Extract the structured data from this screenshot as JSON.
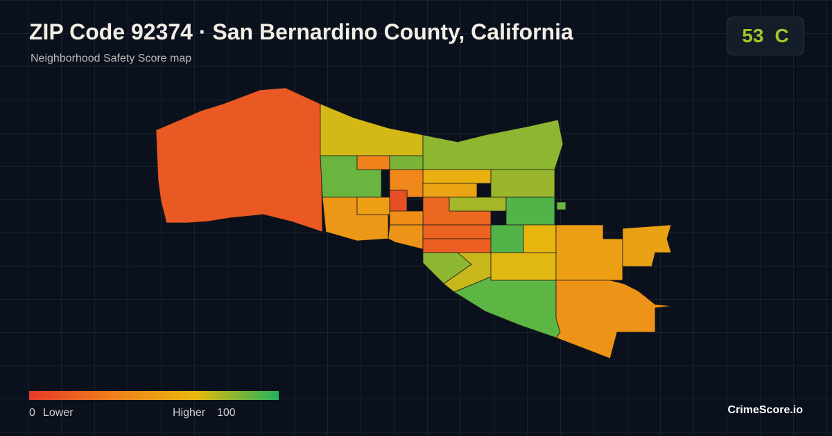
{
  "header": {
    "title": "ZIP Code 92374 · San Bernardino County, California",
    "subtitle": "Neighborhood Safety Score map"
  },
  "badge": {
    "score": 53,
    "grade": "C"
  },
  "map": {
    "scores": [
      15,
      70,
      82,
      88,
      35,
      85,
      62,
      80,
      38,
      55,
      10,
      48,
      52,
      22,
      78,
      92,
      42,
      45,
      20,
      18,
      92,
      65,
      82,
      72,
      68,
      90,
      52,
      53,
      45,
      88
    ]
  },
  "legend": {
    "min": 0,
    "min_label": "Lower",
    "max_label": "Higher",
    "max": 100,
    "colors": [
      "#e53a2a",
      "#f07f1c",
      "#e8b80e",
      "#22b35a"
    ]
  },
  "brand": "CrimeScore.io"
}
